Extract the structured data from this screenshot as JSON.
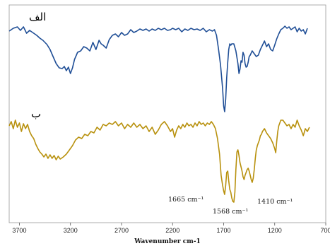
{
  "chart_data": {
    "type": "line",
    "xlabel": "Wavenumber cm-1",
    "x_ticks": [
      "3700",
      "3200",
      "2700",
      "2200",
      "1700",
      "1200",
      "700"
    ],
    "xlim": [
      3800,
      700
    ],
    "grid": false,
    "series": [
      {
        "name": "الف",
        "color": "#1f4e96",
        "points": [
          [
            3800,
            44
          ],
          [
            3760,
            40
          ],
          [
            3720,
            38
          ],
          [
            3690,
            43
          ],
          [
            3660,
            38
          ],
          [
            3630,
            47
          ],
          [
            3600,
            43
          ],
          [
            3560,
            47
          ],
          [
            3530,
            50
          ],
          [
            3500,
            54
          ],
          [
            3470,
            57
          ],
          [
            3430,
            63
          ],
          [
            3400,
            70
          ],
          [
            3370,
            80
          ],
          [
            3340,
            90
          ],
          [
            3310,
            96
          ],
          [
            3280,
            97
          ],
          [
            3260,
            94
          ],
          [
            3240,
            100
          ],
          [
            3220,
            95
          ],
          [
            3200,
            104
          ],
          [
            3180,
            96
          ],
          [
            3160,
            84
          ],
          [
            3130,
            74
          ],
          [
            3100,
            72
          ],
          [
            3070,
            66
          ],
          [
            3040,
            68
          ],
          [
            3010,
            72
          ],
          [
            2980,
            60
          ],
          [
            2950,
            70
          ],
          [
            2920,
            57
          ],
          [
            2900,
            62
          ],
          [
            2880,
            64
          ],
          [
            2850,
            68
          ],
          [
            2820,
            56
          ],
          [
            2790,
            50
          ],
          [
            2760,
            48
          ],
          [
            2730,
            52
          ],
          [
            2700,
            46
          ],
          [
            2670,
            50
          ],
          [
            2640,
            48
          ],
          [
            2610,
            42
          ],
          [
            2580,
            46
          ],
          [
            2550,
            44
          ],
          [
            2520,
            41
          ],
          [
            2490,
            43
          ],
          [
            2460,
            41
          ],
          [
            2430,
            44
          ],
          [
            2400,
            41
          ],
          [
            2370,
            43
          ],
          [
            2340,
            40
          ],
          [
            2310,
            42
          ],
          [
            2280,
            40
          ],
          [
            2250,
            43
          ],
          [
            2220,
            42
          ],
          [
            2200,
            40
          ],
          [
            2170,
            42
          ],
          [
            2140,
            40
          ],
          [
            2110,
            45
          ],
          [
            2080,
            41
          ],
          [
            2050,
            43
          ],
          [
            2020,
            40
          ],
          [
            1990,
            42
          ],
          [
            1960,
            41
          ],
          [
            1930,
            43
          ],
          [
            1900,
            40
          ],
          [
            1870,
            45
          ],
          [
            1840,
            42
          ],
          [
            1810,
            44
          ],
          [
            1790,
            42
          ],
          [
            1770,
            50
          ],
          [
            1750,
            70
          ],
          [
            1730,
            92
          ],
          [
            1710,
            125
          ],
          [
            1700,
            150
          ],
          [
            1690,
            158
          ],
          [
            1680,
            140
          ],
          [
            1670,
            110
          ],
          [
            1660,
            88
          ],
          [
            1650,
            70
          ],
          [
            1640,
            62
          ],
          [
            1630,
            64
          ],
          [
            1620,
            62
          ],
          [
            1600,
            62
          ],
          [
            1580,
            72
          ],
          [
            1560,
            90
          ],
          [
            1550,
            104
          ],
          [
            1540,
            98
          ],
          [
            1530,
            86
          ],
          [
            1520,
            88
          ],
          [
            1510,
            74
          ],
          [
            1500,
            78
          ],
          [
            1490,
            90
          ],
          [
            1480,
            95
          ],
          [
            1470,
            94
          ],
          [
            1460,
            88
          ],
          [
            1450,
            80
          ],
          [
            1440,
            78
          ],
          [
            1430,
            75
          ],
          [
            1420,
            72
          ],
          [
            1400,
            76
          ],
          [
            1380,
            80
          ],
          [
            1360,
            78
          ],
          [
            1340,
            70
          ],
          [
            1320,
            64
          ],
          [
            1300,
            58
          ],
          [
            1280,
            66
          ],
          [
            1260,
            62
          ],
          [
            1240,
            70
          ],
          [
            1220,
            72
          ],
          [
            1200,
            64
          ],
          [
            1180,
            55
          ],
          [
            1160,
            48
          ],
          [
            1140,
            42
          ],
          [
            1120,
            40
          ],
          [
            1100,
            37
          ],
          [
            1080,
            40
          ],
          [
            1060,
            38
          ],
          [
            1040,
            42
          ],
          [
            1020,
            40
          ],
          [
            1000,
            38
          ],
          [
            980,
            45
          ],
          [
            960,
            40
          ],
          [
            940,
            44
          ],
          [
            920,
            42
          ],
          [
            900,
            48
          ],
          [
            880,
            40
          ]
        ]
      },
      {
        "name": "ب",
        "color": "#b8910e",
        "points": [
          [
            3800,
            178
          ],
          [
            3780,
            172
          ],
          [
            3760,
            182
          ],
          [
            3740,
            170
          ],
          [
            3720,
            180
          ],
          [
            3700,
            174
          ],
          [
            3680,
            186
          ],
          [
            3660,
            175
          ],
          [
            3640,
            182
          ],
          [
            3620,
            176
          ],
          [
            3600,
            186
          ],
          [
            3580,
            192
          ],
          [
            3560,
            196
          ],
          [
            3540,
            204
          ],
          [
            3520,
            210
          ],
          [
            3500,
            215
          ],
          [
            3480,
            218
          ],
          [
            3460,
            222
          ],
          [
            3440,
            218
          ],
          [
            3420,
            224
          ],
          [
            3400,
            219
          ],
          [
            3380,
            224
          ],
          [
            3360,
            220
          ],
          [
            3340,
            226
          ],
          [
            3320,
            221
          ],
          [
            3300,
            225
          ],
          [
            3270,
            222
          ],
          [
            3240,
            218
          ],
          [
            3210,
            212
          ],
          [
            3180,
            206
          ],
          [
            3150,
            198
          ],
          [
            3120,
            194
          ],
          [
            3090,
            196
          ],
          [
            3060,
            190
          ],
          [
            3030,
            192
          ],
          [
            3000,
            186
          ],
          [
            2970,
            188
          ],
          [
            2940,
            180
          ],
          [
            2910,
            184
          ],
          [
            2880,
            176
          ],
          [
            2850,
            178
          ],
          [
            2820,
            174
          ],
          [
            2790,
            176
          ],
          [
            2760,
            172
          ],
          [
            2730,
            178
          ],
          [
            2700,
            174
          ],
          [
            2670,
            182
          ],
          [
            2640,
            176
          ],
          [
            2610,
            180
          ],
          [
            2580,
            174
          ],
          [
            2550,
            180
          ],
          [
            2520,
            176
          ],
          [
            2490,
            182
          ],
          [
            2460,
            178
          ],
          [
            2430,
            186
          ],
          [
            2400,
            180
          ],
          [
            2370,
            190
          ],
          [
            2340,
            184
          ],
          [
            2310,
            176
          ],
          [
            2280,
            172
          ],
          [
            2250,
            178
          ],
          [
            2220,
            186
          ],
          [
            2200,
            182
          ],
          [
            2180,
            194
          ],
          [
            2160,
            184
          ],
          [
            2140,
            178
          ],
          [
            2120,
            182
          ],
          [
            2100,
            176
          ],
          [
            2080,
            180
          ],
          [
            2060,
            174
          ],
          [
            2040,
            178
          ],
          [
            2020,
            176
          ],
          [
            2000,
            180
          ],
          [
            1980,
            174
          ],
          [
            1960,
            178
          ],
          [
            1940,
            172
          ],
          [
            1920,
            176
          ],
          [
            1900,
            174
          ],
          [
            1880,
            178
          ],
          [
            1860,
            174
          ],
          [
            1840,
            176
          ],
          [
            1820,
            172
          ],
          [
            1800,
            176
          ],
          [
            1780,
            182
          ],
          [
            1760,
            196
          ],
          [
            1740,
            218
          ],
          [
            1725,
            248
          ],
          [
            1710,
            262
          ],
          [
            1700,
            270
          ],
          [
            1690,
            275
          ],
          [
            1680,
            262
          ],
          [
            1670,
            244
          ],
          [
            1660,
            242
          ],
          [
            1650,
            256
          ],
          [
            1640,
            268
          ],
          [
            1630,
            272
          ],
          [
            1620,
            280
          ],
          [
            1610,
            285
          ],
          [
            1600,
            286
          ],
          [
            1590,
            272
          ],
          [
            1580,
            240
          ],
          [
            1570,
            215
          ],
          [
            1560,
            212
          ],
          [
            1550,
            220
          ],
          [
            1540,
            230
          ],
          [
            1530,
            236
          ],
          [
            1520,
            242
          ],
          [
            1510,
            250
          ],
          [
            1500,
            254
          ],
          [
            1490,
            248
          ],
          [
            1480,
            244
          ],
          [
            1470,
            240
          ],
          [
            1460,
            238
          ],
          [
            1450,
            242
          ],
          [
            1440,
            248
          ],
          [
            1430,
            254
          ],
          [
            1420,
            258
          ],
          [
            1410,
            252
          ],
          [
            1400,
            240
          ],
          [
            1390,
            224
          ],
          [
            1380,
            212
          ],
          [
            1370,
            206
          ],
          [
            1360,
            202
          ],
          [
            1350,
            198
          ],
          [
            1340,
            192
          ],
          [
            1330,
            190
          ],
          [
            1320,
            186
          ],
          [
            1300,
            182
          ],
          [
            1280,
            188
          ],
          [
            1260,
            192
          ],
          [
            1240,
            196
          ],
          [
            1220,
            202
          ],
          [
            1200,
            210
          ],
          [
            1190,
            216
          ],
          [
            1180,
            200
          ],
          [
            1170,
            186
          ],
          [
            1160,
            178
          ],
          [
            1140,
            170
          ],
          [
            1120,
            170
          ],
          [
            1100,
            174
          ],
          [
            1080,
            178
          ],
          [
            1060,
            176
          ],
          [
            1040,
            182
          ],
          [
            1020,
            176
          ],
          [
            1000,
            180
          ],
          [
            980,
            170
          ],
          [
            960,
            178
          ],
          [
            940,
            184
          ],
          [
            920,
            192
          ],
          [
            900,
            182
          ],
          [
            880,
            186
          ],
          [
            860,
            180
          ]
        ]
      }
    ],
    "annotations": [
      {
        "text": "1665 cm⁻¹"
      },
      {
        "text": "1568 cm⁻¹"
      },
      {
        "text": "1410 cm⁻¹"
      }
    ]
  }
}
